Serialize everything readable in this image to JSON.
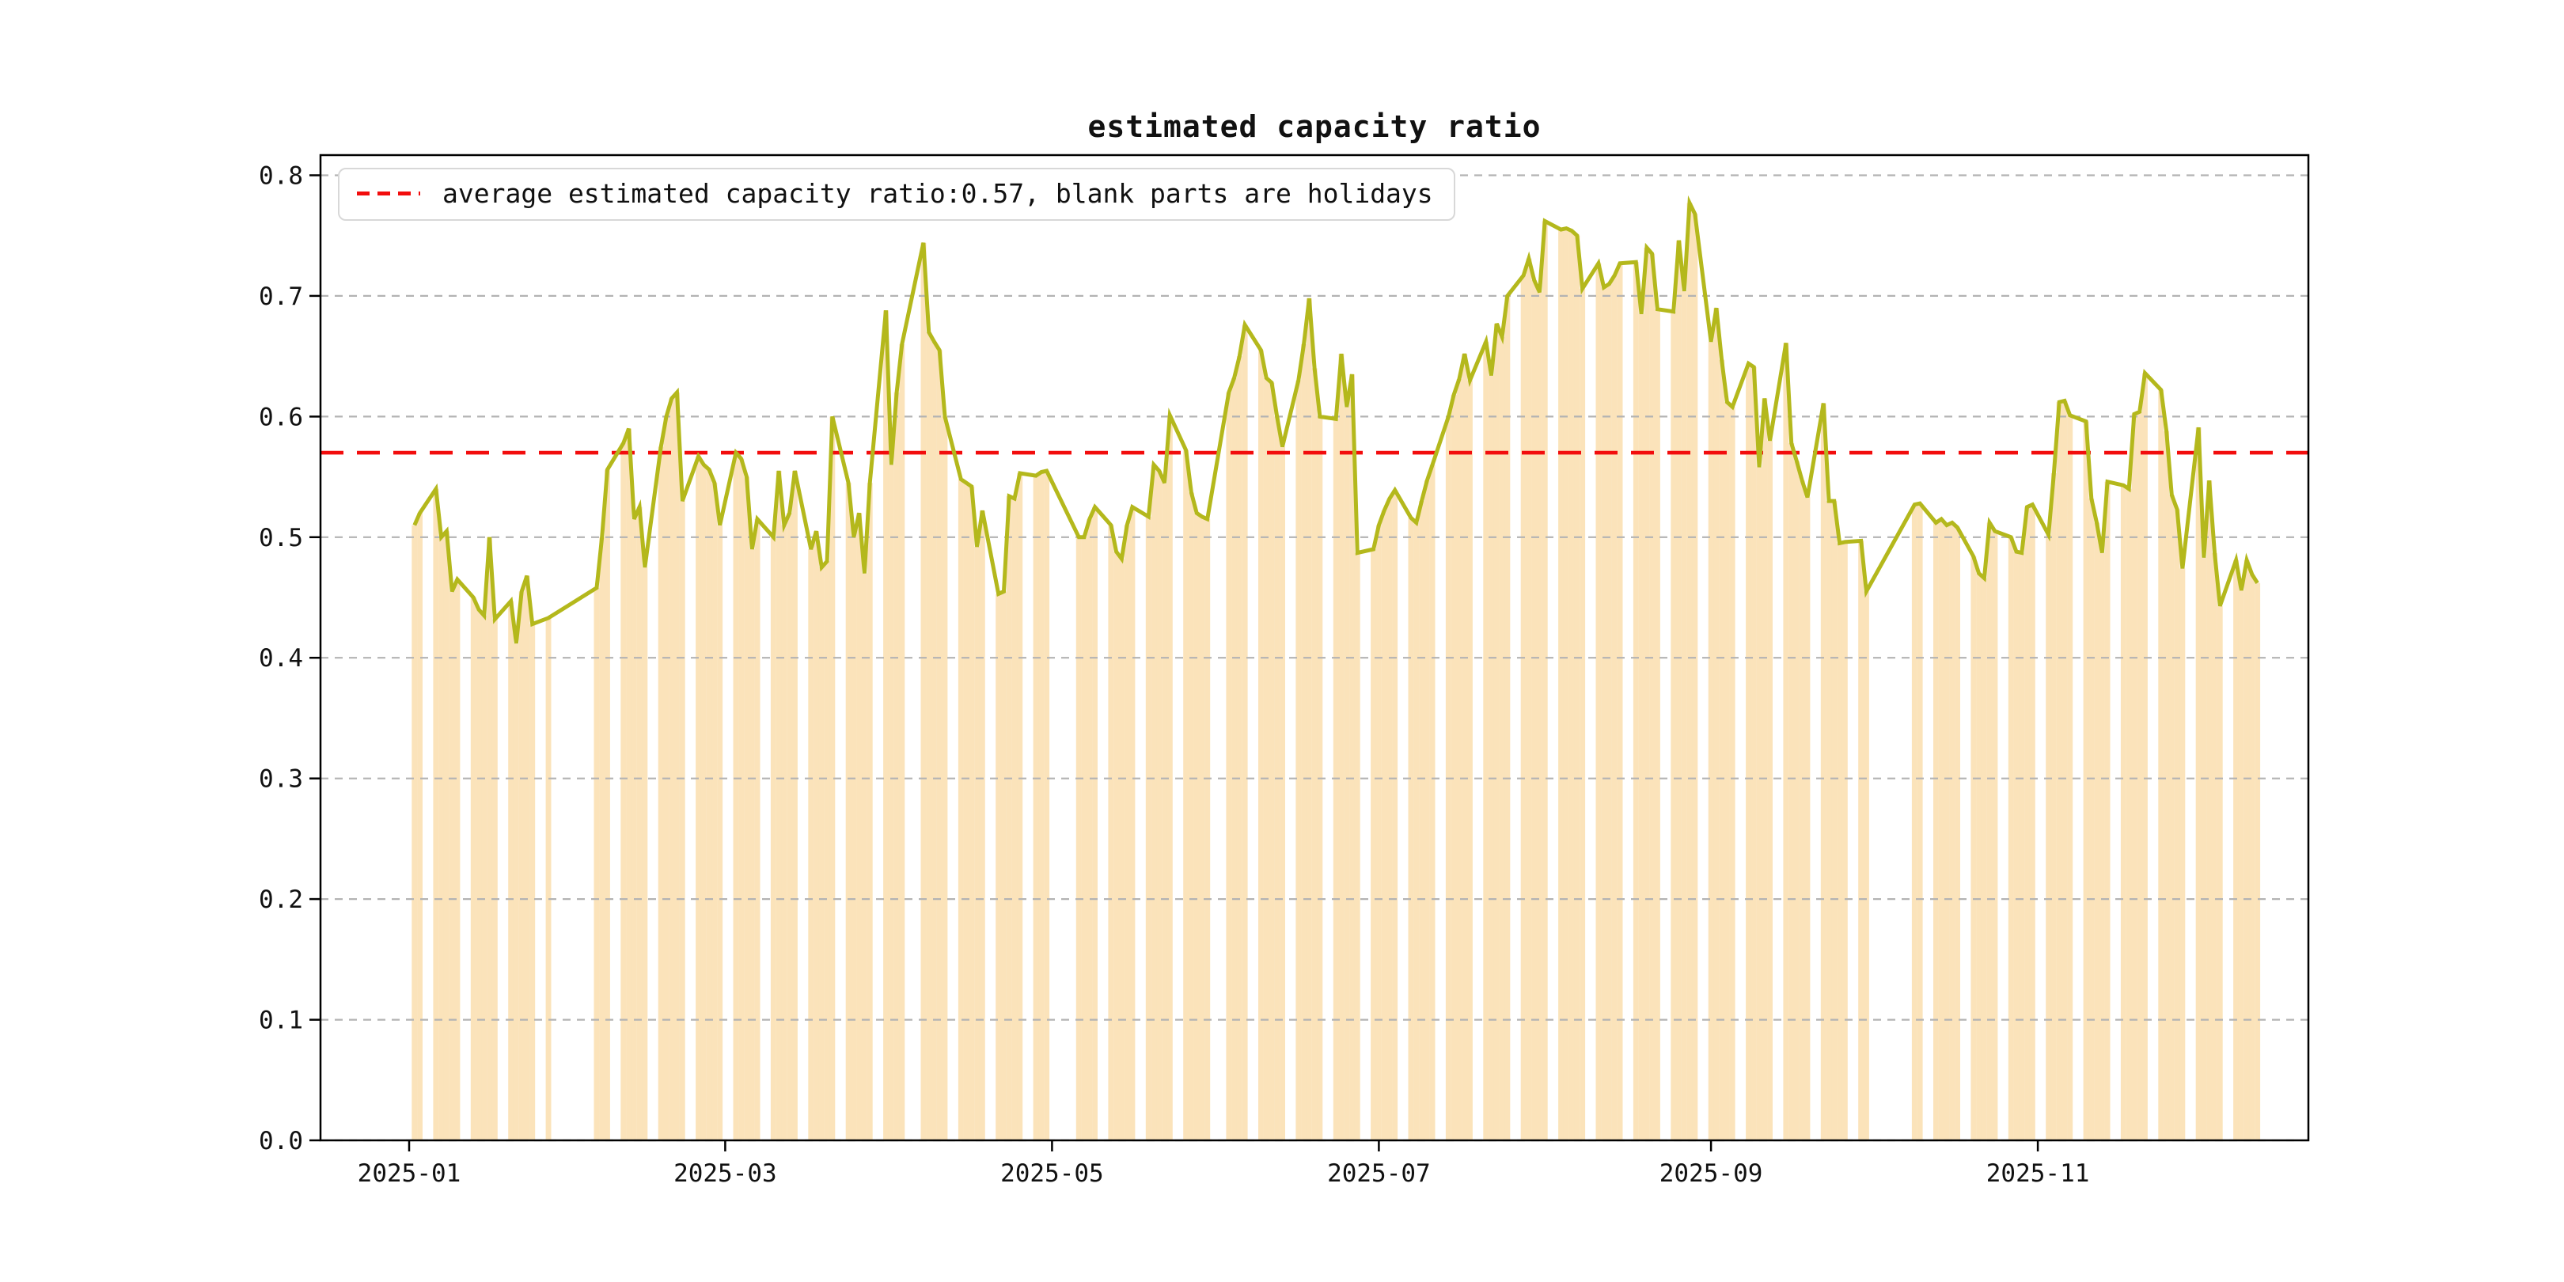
{
  "title": "estimated capacity ratio",
  "legend": {
    "label": "average estimated capacity ratio:0.57, blank parts are holidays"
  },
  "colors": {
    "bar": "#fbe3ba",
    "line": "#b4b81c",
    "average_line": "#f20d0d",
    "grid": "#b3b3b3",
    "spine": "#000000",
    "text": "#111111"
  },
  "chart_data": {
    "type": "bar+line",
    "title": "estimated capacity ratio",
    "xlabel": "",
    "ylabel": "",
    "average": 0.57,
    "ylim": [
      0.0,
      0.8166
    ],
    "grid": "dashed-horizontal",
    "legend_position": "upper-left",
    "yticks": [
      0.0,
      0.1,
      0.2,
      0.3,
      0.4,
      0.5,
      0.6,
      0.7,
      0.8
    ],
    "xticks": [
      "2025-01",
      "2025-03",
      "2025-05",
      "2025-07",
      "2025-09",
      "2025-11"
    ],
    "points": [
      {
        "d": "2025-01-02",
        "v": 0.51
      },
      {
        "d": "2025-01-03",
        "v": 0.52
      },
      {
        "d": "2025-01-06",
        "v": 0.54
      },
      {
        "d": "2025-01-07",
        "v": 0.5
      },
      {
        "d": "2025-01-08",
        "v": 0.505
      },
      {
        "d": "2025-01-09",
        "v": 0.455
      },
      {
        "d": "2025-01-10",
        "v": 0.465
      },
      {
        "d": "2025-01-13",
        "v": 0.45
      },
      {
        "d": "2025-01-14",
        "v": 0.44
      },
      {
        "d": "2025-01-15",
        "v": 0.435
      },
      {
        "d": "2025-01-16",
        "v": 0.5
      },
      {
        "d": "2025-01-17",
        "v": 0.432
      },
      {
        "d": "2025-01-20",
        "v": 0.447
      },
      {
        "d": "2025-01-21",
        "v": 0.412
      },
      {
        "d": "2025-01-22",
        "v": 0.455
      },
      {
        "d": "2025-01-23",
        "v": 0.468
      },
      {
        "d": "2025-01-24",
        "v": 0.428
      },
      {
        "d": "2025-01-27",
        "v": 0.433
      },
      {
        "d": "2025-02-05",
        "v": 0.458
      },
      {
        "d": "2025-02-06",
        "v": 0.5
      },
      {
        "d": "2025-02-07",
        "v": 0.556
      },
      {
        "d": "2025-02-10",
        "v": 0.578
      },
      {
        "d": "2025-02-11",
        "v": 0.59
      },
      {
        "d": "2025-02-12",
        "v": 0.515
      },
      {
        "d": "2025-02-13",
        "v": 0.525
      },
      {
        "d": "2025-02-14",
        "v": 0.475
      },
      {
        "d": "2025-02-17",
        "v": 0.575
      },
      {
        "d": "2025-02-18",
        "v": 0.6
      },
      {
        "d": "2025-02-19",
        "v": 0.615
      },
      {
        "d": "2025-02-20",
        "v": 0.62
      },
      {
        "d": "2025-02-21",
        "v": 0.53
      },
      {
        "d": "2025-02-24",
        "v": 0.567
      },
      {
        "d": "2025-02-25",
        "v": 0.56
      },
      {
        "d": "2025-02-26",
        "v": 0.556
      },
      {
        "d": "2025-02-27",
        "v": 0.545
      },
      {
        "d": "2025-02-28",
        "v": 0.51
      },
      {
        "d": "2025-03-03",
        "v": 0.57
      },
      {
        "d": "2025-03-04",
        "v": 0.565
      },
      {
        "d": "2025-03-05",
        "v": 0.55
      },
      {
        "d": "2025-03-06",
        "v": 0.49
      },
      {
        "d": "2025-03-07",
        "v": 0.515
      },
      {
        "d": "2025-03-10",
        "v": 0.5
      },
      {
        "d": "2025-03-11",
        "v": 0.555
      },
      {
        "d": "2025-03-12",
        "v": 0.51
      },
      {
        "d": "2025-03-13",
        "v": 0.52
      },
      {
        "d": "2025-03-14",
        "v": 0.555
      },
      {
        "d": "2025-03-17",
        "v": 0.49
      },
      {
        "d": "2025-03-18",
        "v": 0.505
      },
      {
        "d": "2025-03-19",
        "v": 0.475
      },
      {
        "d": "2025-03-20",
        "v": 0.48
      },
      {
        "d": "2025-03-21",
        "v": 0.6
      },
      {
        "d": "2025-03-24",
        "v": 0.545
      },
      {
        "d": "2025-03-25",
        "v": 0.5
      },
      {
        "d": "2025-03-26",
        "v": 0.52
      },
      {
        "d": "2025-03-27",
        "v": 0.47
      },
      {
        "d": "2025-03-28",
        "v": 0.545
      },
      {
        "d": "2025-03-31",
        "v": 0.688
      },
      {
        "d": "2025-04-01",
        "v": 0.56
      },
      {
        "d": "2025-04-02",
        "v": 0.62
      },
      {
        "d": "2025-04-03",
        "v": 0.66
      },
      {
        "d": "2025-04-07",
        "v": 0.744
      },
      {
        "d": "2025-04-08",
        "v": 0.67
      },
      {
        "d": "2025-04-09",
        "v": 0.662
      },
      {
        "d": "2025-04-10",
        "v": 0.655
      },
      {
        "d": "2025-04-11",
        "v": 0.6
      },
      {
        "d": "2025-04-14",
        "v": 0.548
      },
      {
        "d": "2025-04-15",
        "v": 0.545
      },
      {
        "d": "2025-04-16",
        "v": 0.542
      },
      {
        "d": "2025-04-17",
        "v": 0.492
      },
      {
        "d": "2025-04-18",
        "v": 0.522
      },
      {
        "d": "2025-04-21",
        "v": 0.453
      },
      {
        "d": "2025-04-22",
        "v": 0.455
      },
      {
        "d": "2025-04-23",
        "v": 0.534
      },
      {
        "d": "2025-04-24",
        "v": 0.532
      },
      {
        "d": "2025-04-25",
        "v": 0.553
      },
      {
        "d": "2025-04-28",
        "v": 0.551
      },
      {
        "d": "2025-04-29",
        "v": 0.554
      },
      {
        "d": "2025-04-30",
        "v": 0.555
      },
      {
        "d": "2025-05-06",
        "v": 0.5
      },
      {
        "d": "2025-05-07",
        "v": 0.5
      },
      {
        "d": "2025-05-08",
        "v": 0.515
      },
      {
        "d": "2025-05-09",
        "v": 0.525
      },
      {
        "d": "2025-05-12",
        "v": 0.51
      },
      {
        "d": "2025-05-13",
        "v": 0.488
      },
      {
        "d": "2025-05-14",
        "v": 0.482
      },
      {
        "d": "2025-05-15",
        "v": 0.51
      },
      {
        "d": "2025-05-16",
        "v": 0.525
      },
      {
        "d": "2025-05-19",
        "v": 0.517
      },
      {
        "d": "2025-05-20",
        "v": 0.56
      },
      {
        "d": "2025-05-21",
        "v": 0.555
      },
      {
        "d": "2025-05-22",
        "v": 0.545
      },
      {
        "d": "2025-05-23",
        "v": 0.601
      },
      {
        "d": "2025-05-26",
        "v": 0.572
      },
      {
        "d": "2025-05-27",
        "v": 0.537
      },
      {
        "d": "2025-05-28",
        "v": 0.52
      },
      {
        "d": "2025-05-29",
        "v": 0.517
      },
      {
        "d": "2025-05-30",
        "v": 0.515
      },
      {
        "d": "2025-06-03",
        "v": 0.62
      },
      {
        "d": "2025-06-04",
        "v": 0.632
      },
      {
        "d": "2025-06-05",
        "v": 0.65
      },
      {
        "d": "2025-06-06",
        "v": 0.676
      },
      {
        "d": "2025-06-09",
        "v": 0.655
      },
      {
        "d": "2025-06-10",
        "v": 0.632
      },
      {
        "d": "2025-06-11",
        "v": 0.628
      },
      {
        "d": "2025-06-12",
        "v": 0.6
      },
      {
        "d": "2025-06-13",
        "v": 0.575
      },
      {
        "d": "2025-06-16",
        "v": 0.63
      },
      {
        "d": "2025-06-17",
        "v": 0.66
      },
      {
        "d": "2025-06-18",
        "v": 0.698
      },
      {
        "d": "2025-06-19",
        "v": 0.64
      },
      {
        "d": "2025-06-20",
        "v": 0.6
      },
      {
        "d": "2025-06-23",
        "v": 0.598
      },
      {
        "d": "2025-06-24",
        "v": 0.652
      },
      {
        "d": "2025-06-25",
        "v": 0.608
      },
      {
        "d": "2025-06-26",
        "v": 0.635
      },
      {
        "d": "2025-06-27",
        "v": 0.487
      },
      {
        "d": "2025-06-30",
        "v": 0.49
      },
      {
        "d": "2025-07-01",
        "v": 0.51
      },
      {
        "d": "2025-07-02",
        "v": 0.522
      },
      {
        "d": "2025-07-03",
        "v": 0.532
      },
      {
        "d": "2025-07-04",
        "v": 0.539
      },
      {
        "d": "2025-07-07",
        "v": 0.516
      },
      {
        "d": "2025-07-08",
        "v": 0.512
      },
      {
        "d": "2025-07-09",
        "v": 0.53
      },
      {
        "d": "2025-07-10",
        "v": 0.547
      },
      {
        "d": "2025-07-11",
        "v": 0.56
      },
      {
        "d": "2025-07-14",
        "v": 0.6
      },
      {
        "d": "2025-07-15",
        "v": 0.618
      },
      {
        "d": "2025-07-16",
        "v": 0.631
      },
      {
        "d": "2025-07-17",
        "v": 0.652
      },
      {
        "d": "2025-07-18",
        "v": 0.63
      },
      {
        "d": "2025-07-21",
        "v": 0.662
      },
      {
        "d": "2025-07-22",
        "v": 0.634
      },
      {
        "d": "2025-07-23",
        "v": 0.677
      },
      {
        "d": "2025-07-24",
        "v": 0.666
      },
      {
        "d": "2025-07-25",
        "v": 0.7
      },
      {
        "d": "2025-07-28",
        "v": 0.717
      },
      {
        "d": "2025-07-29",
        "v": 0.731
      },
      {
        "d": "2025-07-30",
        "v": 0.713
      },
      {
        "d": "2025-07-31",
        "v": 0.703
      },
      {
        "d": "2025-08-01",
        "v": 0.762
      },
      {
        "d": "2025-08-04",
        "v": 0.755
      },
      {
        "d": "2025-08-05",
        "v": 0.756
      },
      {
        "d": "2025-08-06",
        "v": 0.754
      },
      {
        "d": "2025-08-07",
        "v": 0.75
      },
      {
        "d": "2025-08-08",
        "v": 0.706
      },
      {
        "d": "2025-08-11",
        "v": 0.727
      },
      {
        "d": "2025-08-12",
        "v": 0.707
      },
      {
        "d": "2025-08-13",
        "v": 0.71
      },
      {
        "d": "2025-08-14",
        "v": 0.717
      },
      {
        "d": "2025-08-15",
        "v": 0.727
      },
      {
        "d": "2025-08-18",
        "v": 0.728
      },
      {
        "d": "2025-08-19",
        "v": 0.685
      },
      {
        "d": "2025-08-20",
        "v": 0.74
      },
      {
        "d": "2025-08-21",
        "v": 0.735
      },
      {
        "d": "2025-08-22",
        "v": 0.689
      },
      {
        "d": "2025-08-25",
        "v": 0.687
      },
      {
        "d": "2025-08-26",
        "v": 0.746
      },
      {
        "d": "2025-08-27",
        "v": 0.704
      },
      {
        "d": "2025-08-28",
        "v": 0.777
      },
      {
        "d": "2025-08-29",
        "v": 0.768
      },
      {
        "d": "2025-09-01",
        "v": 0.662
      },
      {
        "d": "2025-09-02",
        "v": 0.69
      },
      {
        "d": "2025-09-03",
        "v": 0.647
      },
      {
        "d": "2025-09-04",
        "v": 0.612
      },
      {
        "d": "2025-09-05",
        "v": 0.608
      },
      {
        "d": "2025-09-08",
        "v": 0.644
      },
      {
        "d": "2025-09-09",
        "v": 0.641
      },
      {
        "d": "2025-09-10",
        "v": 0.558
      },
      {
        "d": "2025-09-11",
        "v": 0.615
      },
      {
        "d": "2025-09-12",
        "v": 0.58
      },
      {
        "d": "2025-09-15",
        "v": 0.661
      },
      {
        "d": "2025-09-16",
        "v": 0.578
      },
      {
        "d": "2025-09-17",
        "v": 0.563
      },
      {
        "d": "2025-09-18",
        "v": 0.547
      },
      {
        "d": "2025-09-19",
        "v": 0.533
      },
      {
        "d": "2025-09-22",
        "v": 0.611
      },
      {
        "d": "2025-09-23",
        "v": 0.53
      },
      {
        "d": "2025-09-24",
        "v": 0.53
      },
      {
        "d": "2025-09-25",
        "v": 0.495
      },
      {
        "d": "2025-09-26",
        "v": 0.496
      },
      {
        "d": "2025-09-29",
        "v": 0.497
      },
      {
        "d": "2025-09-30",
        "v": 0.455
      },
      {
        "d": "2025-10-09",
        "v": 0.527
      },
      {
        "d": "2025-10-10",
        "v": 0.528
      },
      {
        "d": "2025-10-13",
        "v": 0.512
      },
      {
        "d": "2025-10-14",
        "v": 0.515
      },
      {
        "d": "2025-10-15",
        "v": 0.51
      },
      {
        "d": "2025-10-16",
        "v": 0.512
      },
      {
        "d": "2025-10-17",
        "v": 0.508
      },
      {
        "d": "2025-10-20",
        "v": 0.484
      },
      {
        "d": "2025-10-21",
        "v": 0.47
      },
      {
        "d": "2025-10-22",
        "v": 0.466
      },
      {
        "d": "2025-10-23",
        "v": 0.512
      },
      {
        "d": "2025-10-24",
        "v": 0.505
      },
      {
        "d": "2025-10-27",
        "v": 0.5
      },
      {
        "d": "2025-10-28",
        "v": 0.488
      },
      {
        "d": "2025-10-29",
        "v": 0.487
      },
      {
        "d": "2025-10-30",
        "v": 0.525
      },
      {
        "d": "2025-10-31",
        "v": 0.527
      },
      {
        "d": "2025-11-03",
        "v": 0.502
      },
      {
        "d": "2025-11-04",
        "v": 0.553
      },
      {
        "d": "2025-11-05",
        "v": 0.612
      },
      {
        "d": "2025-11-06",
        "v": 0.613
      },
      {
        "d": "2025-11-07",
        "v": 0.601
      },
      {
        "d": "2025-11-10",
        "v": 0.596
      },
      {
        "d": "2025-11-11",
        "v": 0.532
      },
      {
        "d": "2025-11-12",
        "v": 0.512
      },
      {
        "d": "2025-11-13",
        "v": 0.487
      },
      {
        "d": "2025-11-14",
        "v": 0.546
      },
      {
        "d": "2025-11-17",
        "v": 0.543
      },
      {
        "d": "2025-11-18",
        "v": 0.54
      },
      {
        "d": "2025-11-19",
        "v": 0.602
      },
      {
        "d": "2025-11-20",
        "v": 0.604
      },
      {
        "d": "2025-11-21",
        "v": 0.636
      },
      {
        "d": "2025-11-24",
        "v": 0.622
      },
      {
        "d": "2025-11-25",
        "v": 0.588
      },
      {
        "d": "2025-11-26",
        "v": 0.535
      },
      {
        "d": "2025-11-27",
        "v": 0.523
      },
      {
        "d": "2025-11-28",
        "v": 0.474
      },
      {
        "d": "2025-12-01",
        "v": 0.591
      },
      {
        "d": "2025-12-02",
        "v": 0.483
      },
      {
        "d": "2025-12-03",
        "v": 0.547
      },
      {
        "d": "2025-12-04",
        "v": 0.487
      },
      {
        "d": "2025-12-05",
        "v": 0.443
      },
      {
        "d": "2025-12-08",
        "v": 0.481
      },
      {
        "d": "2025-12-09",
        "v": 0.456
      },
      {
        "d": "2025-12-10",
        "v": 0.481
      },
      {
        "d": "2025-12-11",
        "v": 0.469
      },
      {
        "d": "2025-12-12",
        "v": 0.462
      }
    ]
  }
}
